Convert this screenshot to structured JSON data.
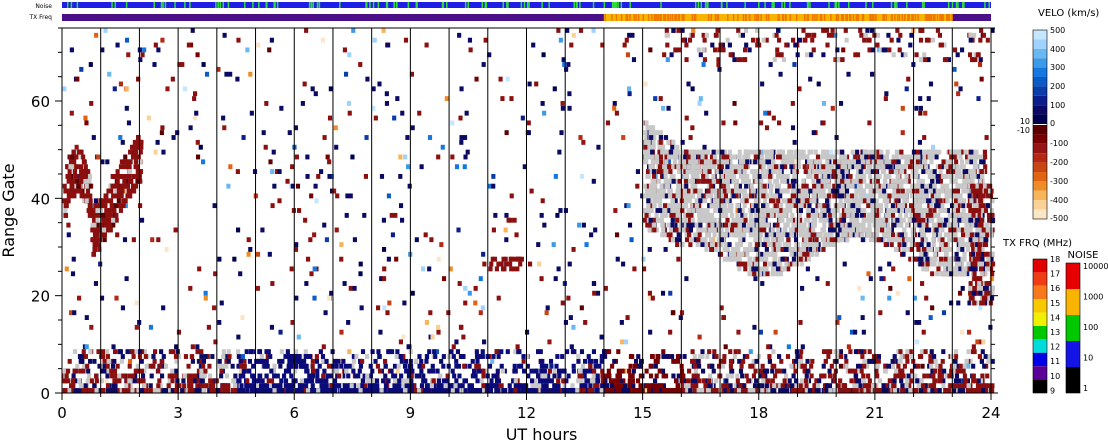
{
  "chart_data": {
    "type": "heatmap",
    "xlabel": "UT hours",
    "ylabel": "Range Gate",
    "xlim": [
      0,
      24
    ],
    "ylim": [
      0,
      75
    ],
    "x_ticks": [
      0,
      3,
      6,
      9,
      12,
      15,
      18,
      21,
      24
    ],
    "y_ticks": [
      0,
      20,
      40,
      60
    ],
    "strip_labels": {
      "noise": "Noise",
      "tx_freq": "TX Freq"
    },
    "noise_strip": {
      "base_color": "#1e1ee6",
      "spike_color": "#2fdc3c"
    },
    "tx_freq_strip": {
      "segments": [
        {
          "start": 0,
          "end": 14,
          "color": "#4b0f87"
        },
        {
          "start": 14,
          "end": 23,
          "color": "#f7b500"
        },
        {
          "start": 23,
          "end": 24,
          "color": "#4b0f87"
        }
      ]
    },
    "ground_scatter_color": "#c8c8c8",
    "grid": {
      "vertical_hourly_lines": true
    },
    "colorbars": {
      "velocity": {
        "title": "VELO (km/s)",
        "ticks": [
          "500",
          "400",
          "300",
          "200",
          "100",
          "0",
          "-100",
          "-200",
          "-300",
          "-400",
          "-500"
        ],
        "zero_markers": [
          "10",
          "-10"
        ],
        "colors_top": [
          "#c5e6ff",
          "#9fd2ff",
          "#6ab8f2",
          "#3d9ae6",
          "#1478e0",
          "#0a5ac8",
          "#0a3caa",
          "#0a1e8c",
          "#0a0a64",
          "#000050"
        ],
        "colors_bottom": [
          "#5a0000",
          "#780000",
          "#961414",
          "#b42814",
          "#c84614",
          "#e06414",
          "#f08c28",
          "#f8b45a",
          "#fad296",
          "#fce6c8"
        ]
      },
      "tx_freq": {
        "title": "TX FRQ (MHz)",
        "ticks": [
          "18",
          "17",
          "16",
          "15",
          "14",
          "13",
          "12",
          "11",
          "10",
          "9"
        ],
        "colors": [
          "#e00000",
          "#f03c14",
          "#f8781e",
          "#f8c800",
          "#f0f000",
          "#00c800",
          "#00dcdc",
          "#0000e6",
          "#5a0096",
          "#000000"
        ]
      },
      "noise": {
        "title": "NOISE",
        "ticks": [
          "10000",
          "1000",
          "100",
          "10",
          "1"
        ],
        "colors": [
          "#e60000",
          "#f8b400",
          "#00c800",
          "#1414e6",
          "#000000"
        ]
      }
    },
    "regions": [
      {
        "name": "early ionospheric scatter",
        "x": [
          0,
          2
        ],
        "gates": [
          25,
          52
        ],
        "color": "#8b0f0f"
      },
      {
        "name": "ground scatter band",
        "x": [
          15,
          23.8
        ],
        "gates": [
          25,
          50
        ],
        "color": "#c8c8c8"
      },
      {
        "name": "near-range scatter",
        "x": [
          0,
          24
        ],
        "gates": [
          0,
          8
        ],
        "color": "#0a0a78"
      },
      {
        "name": "negative velocity patch",
        "x": [
          11,
          12
        ],
        "gates": [
          25,
          27
        ],
        "color": "#8b0f0f"
      }
    ]
  }
}
